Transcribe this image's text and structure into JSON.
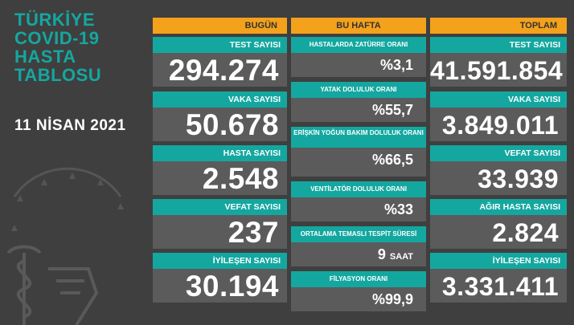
{
  "title_lines": [
    "TÜRKİYE",
    "COVID-19",
    "HASTA",
    "TABLOSU"
  ],
  "date": "11 NİSAN 2021",
  "headers": {
    "today": "BUGÜN",
    "week": "BU HAFTA",
    "total": "TOPLAM"
  },
  "today": [
    {
      "label": "TEST SAYISI",
      "value": "294.274"
    },
    {
      "label": "VAKA SAYISI",
      "value": "50.678"
    },
    {
      "label": "HASTA SAYISI",
      "value": "2.548"
    },
    {
      "label": "VEFAT SAYISI",
      "value": "237"
    },
    {
      "label": "İYİLEŞEN SAYISI",
      "value": "30.194"
    }
  ],
  "week": [
    {
      "label": "HASTALARDA ZATÜRRE ORANI",
      "value": "%3,1"
    },
    {
      "label": "YATAK DOLULUK ORANI",
      "value": "%55,7"
    },
    {
      "label": "ERİŞKİN YOĞUN BAKIM DOLULUK ORANI",
      "value": "%66,5"
    },
    {
      "label": "VENTİLATÖR DOLULUK ORANI",
      "value": "%33"
    },
    {
      "label": "ORTALAMA TEMASLI TESPİT SÜRESİ",
      "value": "9",
      "unit": "SAAT"
    },
    {
      "label": "FİLYASYON ORANI",
      "value": "%99,9"
    }
  ],
  "total": [
    {
      "label": "TEST SAYISI",
      "value": "41.591.854"
    },
    {
      "label": "VAKA SAYISI",
      "value": "3.849.011"
    },
    {
      "label": "VEFAT SAYISI",
      "value": "33.939"
    },
    {
      "label": "AĞIR HASTA SAYISI",
      "value": "2.824"
    },
    {
      "label": "İYİLEŞEN SAYISI",
      "value": "3.331.411"
    }
  ],
  "colors": {
    "background": "#3f3f3f",
    "card": "#5b5b5b",
    "teal": "#14a7a0",
    "orange": "#f4a11c"
  },
  "icons": [
    "health-ministry-emblem-icon"
  ]
}
